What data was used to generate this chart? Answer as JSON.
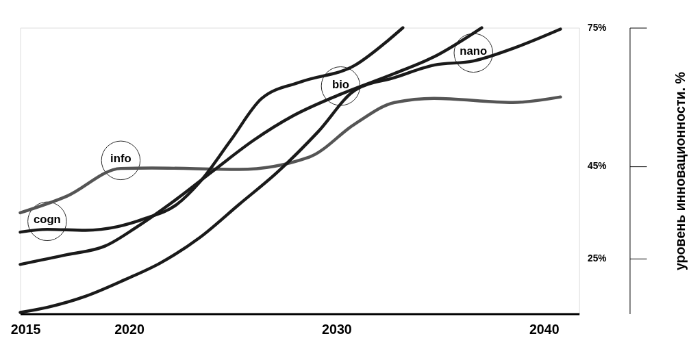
{
  "chart_data": {
    "type": "line",
    "ylabel": "уровень инновационности. %",
    "xlim": [
      2014.75,
      2041.7
    ],
    "ylim": [
      13,
      75
    ],
    "xticks": [
      2015,
      2020,
      2030,
      2040
    ],
    "yticks": [
      {
        "value": 25,
        "label": "25%"
      },
      {
        "value": 45,
        "label": "45%"
      },
      {
        "value": 75,
        "label": "75%"
      }
    ],
    "grid": false,
    "marker": "none",
    "line_style": "solid",
    "series": [
      {
        "color": "#555555",
        "x": [
          2014.75,
          2017,
          2019.6,
          2021.1,
          2025.3,
          2028.7,
          2030.9,
          2032.8,
          2034.7,
          2038.5,
          2040.8
        ],
        "values": [
          34.9,
          38.5,
          44.5,
          44.6,
          44.3,
          47,
          54.2,
          58.8,
          59.7,
          58.8,
          60
        ]
      },
      {
        "color": "#1a1a1a",
        "x": [
          2014.75,
          2016.05,
          2017.9,
          2019.45,
          2020.8,
          2022.3,
          2023.4,
          2024.9,
          2026.4,
          2028.3,
          2030.9,
          2032.5,
          2033.2
        ],
        "values": [
          30.7,
          31.3,
          31.1,
          31.9,
          33.7,
          36.7,
          41.5,
          50.6,
          59.7,
          63.3,
          66.9,
          72.3,
          75
        ]
      },
      {
        "color": "#1a1a1a",
        "x": [
          2014.75,
          2017,
          2018.85,
          2020.4,
          2022.3,
          2024.2,
          2026,
          2027.9,
          2030.2,
          2032.8,
          2034.7,
          2037
        ],
        "values": [
          23.7,
          25.8,
          27.7,
          31.9,
          37.9,
          44.5,
          50.6,
          55.9,
          60.6,
          65.1,
          68.7,
          75
        ]
      },
      {
        "color": "#1a1a1a",
        "x": [
          2014.75,
          2016.05,
          2017.9,
          2019.8,
          2021.5,
          2023.4,
          2025.3,
          2027.2,
          2029.1,
          2030.9,
          2032.8,
          2034.7,
          2036.6,
          2038.5,
          2040.8
        ],
        "values": [
          13.3,
          14.4,
          16.8,
          20.4,
          24,
          29.5,
          36.7,
          43.9,
          52.4,
          61.5,
          64.2,
          66.9,
          67.8,
          70.5,
          74.7
        ]
      }
    ],
    "annotations": [
      {
        "text": "cogn",
        "x": 2016.05,
        "y": 31.3
      },
      {
        "text": "info",
        "x": 2019.6,
        "y": 44.5
      },
      {
        "text": "bio",
        "x": 2030.2,
        "y": 60.6
      },
      {
        "text": "nano",
        "x": 2036.6,
        "y": 67.8
      }
    ]
  }
}
